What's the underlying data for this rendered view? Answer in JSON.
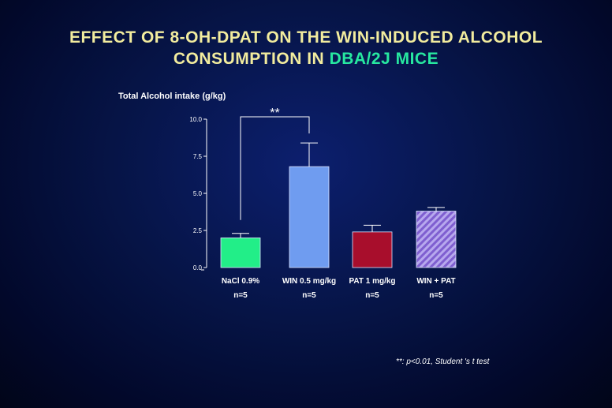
{
  "slide": {
    "title_line1": "EFFECT OF 8-OH-DPAT ON THE WIN-INDUCED ALCOHOL",
    "title_line2_prefix": "CONSUMPTION IN ",
    "title_line2_highlight": "DBA/2J MICE",
    "footnote": "**: p<0.01, Student 's t test"
  },
  "colors": {
    "title": "#f2ec9e",
    "highlight": "#27e8a0",
    "background": "#061446"
  },
  "chart_data": {
    "type": "bar",
    "title": "",
    "ylabel": "Total Alcohol intake (g/kg)",
    "xlabel": "",
    "ylim": [
      0,
      10
    ],
    "yticks": [
      0,
      2.5,
      5,
      7.5,
      10
    ],
    "ytick_labels": [
      "0.0",
      "2.5",
      "5.0",
      "7.5",
      "10.0"
    ],
    "categories": [
      {
        "label": "NaCl 0.9%",
        "n": "n=5"
      },
      {
        "label": "WIN 0.5 mg/kg",
        "n": "n=5"
      },
      {
        "label": "PAT 1 mg/kg",
        "n": "n=5"
      },
      {
        "label": "WIN + PAT",
        "n": "n=5"
      }
    ],
    "values": [
      2.0,
      6.8,
      2.4,
      3.8
    ],
    "errors": [
      0.3,
      1.6,
      0.45,
      0.25
    ],
    "bar_colors": [
      "#22ee88",
      "#6f9cf0",
      "#a80e2c",
      "#8f72d8"
    ],
    "bar_patterns": [
      "solid",
      "solid",
      "solid",
      "hatched"
    ],
    "significance": {
      "from": 0,
      "to": 1,
      "label": "**"
    }
  }
}
